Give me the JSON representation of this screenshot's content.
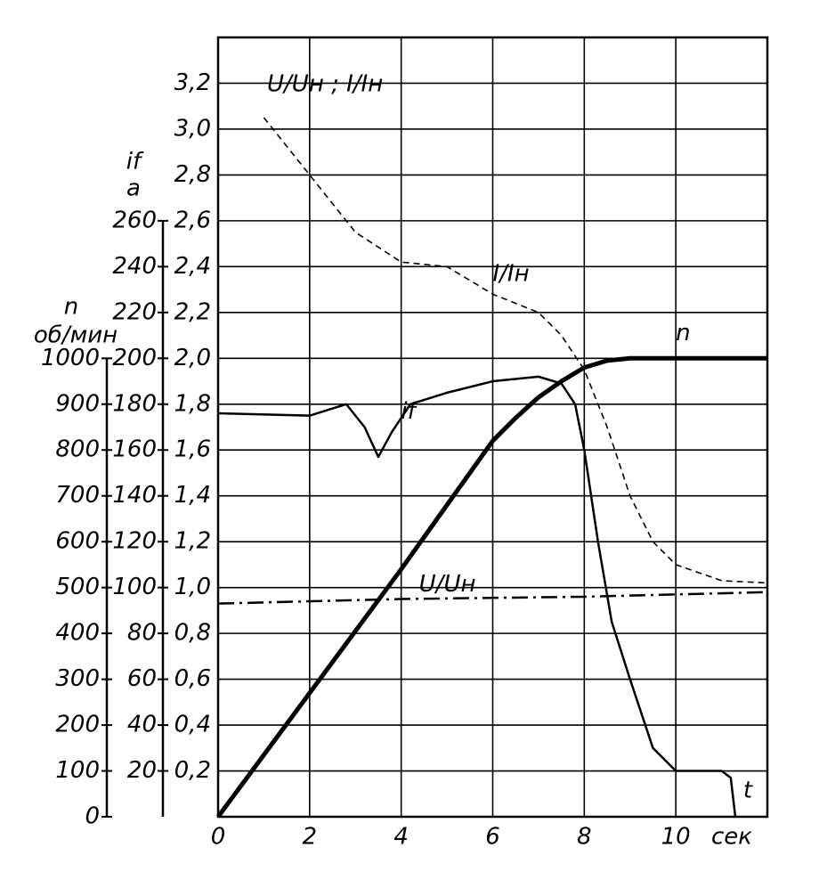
{
  "chart_data": {
    "type": "line",
    "ylabel": "U/Uн ; I/Iн",
    "y2label": "if",
    "y2unit": "a",
    "y3label": "n",
    "y3unit": "об/мин",
    "xlabel": "t",
    "xunit": "сек",
    "xlim": [
      0,
      12
    ],
    "xticks": [
      0,
      2,
      4,
      6,
      8,
      10
    ],
    "ylim": [
      0,
      3.4
    ],
    "yticks": [
      {
        "value": 0.2,
        "label": "0,2"
      },
      {
        "value": 0.4,
        "label": "0,4"
      },
      {
        "value": 0.6,
        "label": "0,6"
      },
      {
        "value": 0.8,
        "label": "0,8"
      },
      {
        "value": 1.0,
        "label": "1,0"
      },
      {
        "value": 1.2,
        "label": "1,2"
      },
      {
        "value": 1.4,
        "label": "1,4"
      },
      {
        "value": 1.6,
        "label": "1,6"
      },
      {
        "value": 1.8,
        "label": "1,8"
      },
      {
        "value": 2.0,
        "label": "2,0"
      },
      {
        "value": 2.2,
        "label": "2,2"
      },
      {
        "value": 2.4,
        "label": "2,4"
      },
      {
        "value": 2.6,
        "label": "2,6"
      },
      {
        "value": 2.8,
        "label": "2,8"
      },
      {
        "value": 3.0,
        "label": "3,0"
      },
      {
        "value": 3.2,
        "label": "3,2"
      }
    ],
    "y2lim": [
      0,
      340
    ],
    "y2ticks": [
      20,
      40,
      60,
      80,
      100,
      120,
      140,
      160,
      180,
      200,
      220,
      240,
      260
    ],
    "y3lim": [
      0,
      1700
    ],
    "y3ticks": [
      0,
      100,
      200,
      300,
      400,
      500,
      600,
      700,
      800,
      900,
      1000
    ],
    "grid": true,
    "series": [
      {
        "name": "I/Iн",
        "color": "#000000",
        "style": "dashed",
        "x": [
          1,
          2,
          3,
          4,
          5,
          6,
          7,
          7.5,
          8,
          8.5,
          9,
          9.5,
          10,
          11,
          12
        ],
        "values": [
          3.05,
          2.8,
          2.55,
          2.42,
          2.4,
          2.28,
          2.2,
          2.1,
          1.95,
          1.7,
          1.4,
          1.2,
          1.1,
          1.03,
          1.02
        ]
      },
      {
        "name": "if",
        "color": "#000000",
        "style": "solid",
        "axis": "y2",
        "x": [
          0,
          2,
          2.8,
          3.2,
          3.5,
          3.8,
          4.2,
          5,
          6,
          7,
          7.5,
          7.8,
          8,
          8.3,
          8.6,
          9,
          9.5,
          10,
          10.5,
          11,
          11.2,
          11.3
        ],
        "values": [
          176,
          175,
          180,
          170,
          157,
          168,
          180,
          185,
          190,
          192,
          189,
          180,
          160,
          120,
          85,
          60,
          30,
          20,
          20,
          20,
          17,
          0
        ]
      },
      {
        "name": "U/Uн",
        "color": "#000000",
        "style": "dashdot",
        "x": [
          0,
          4,
          8,
          12
        ],
        "values": [
          0.93,
          0.95,
          0.96,
          0.98
        ]
      },
      {
        "name": "n",
        "color": "#000000",
        "style": "thick",
        "axis": "y3",
        "x": [
          0,
          1,
          2,
          3,
          4,
          5,
          6,
          6.5,
          7,
          7.5,
          8,
          8.5,
          9,
          10,
          11,
          12
        ],
        "values": [
          0,
          135,
          270,
          405,
          540,
          680,
          820,
          870,
          915,
          950,
          980,
          995,
          1000,
          1000,
          1000,
          1000
        ]
      }
    ]
  }
}
